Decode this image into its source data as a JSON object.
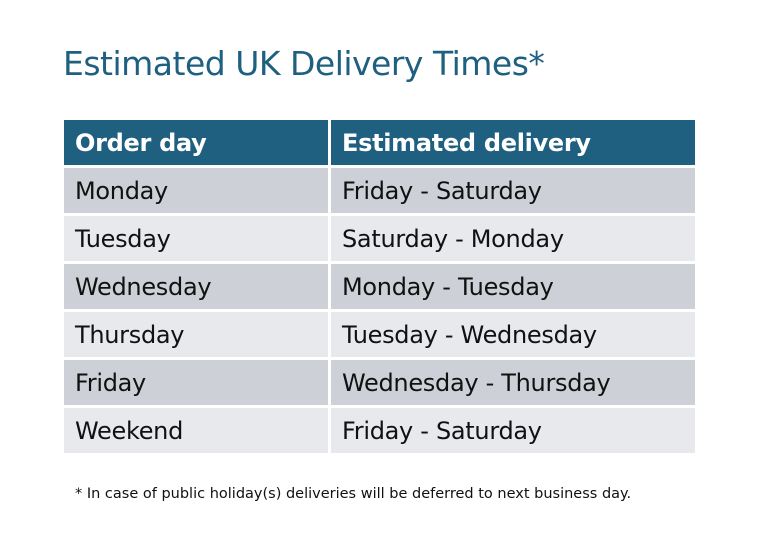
{
  "title": "Estimated UK Delivery Times*",
  "table": {
    "headers": [
      "Order day",
      "Estimated delivery"
    ],
    "rows": [
      [
        "Monday",
        "Friday - Saturday"
      ],
      [
        "Tuesday",
        "Saturday - Monday"
      ],
      [
        "Wednesday",
        "Monday - Tuesday"
      ],
      [
        "Thursday",
        "Tuesday - Wednesday"
      ],
      [
        "Friday",
        "Wednesday - Thursday"
      ],
      [
        "Weekend",
        "Friday - Saturday"
      ]
    ]
  },
  "footnote": "* In case of public holiday(s) deliveries will be deferred to next business day.",
  "colors": {
    "header": "#1f5f80",
    "row_dark": "#cdd1d7",
    "row_light": "#e7e9ec"
  }
}
